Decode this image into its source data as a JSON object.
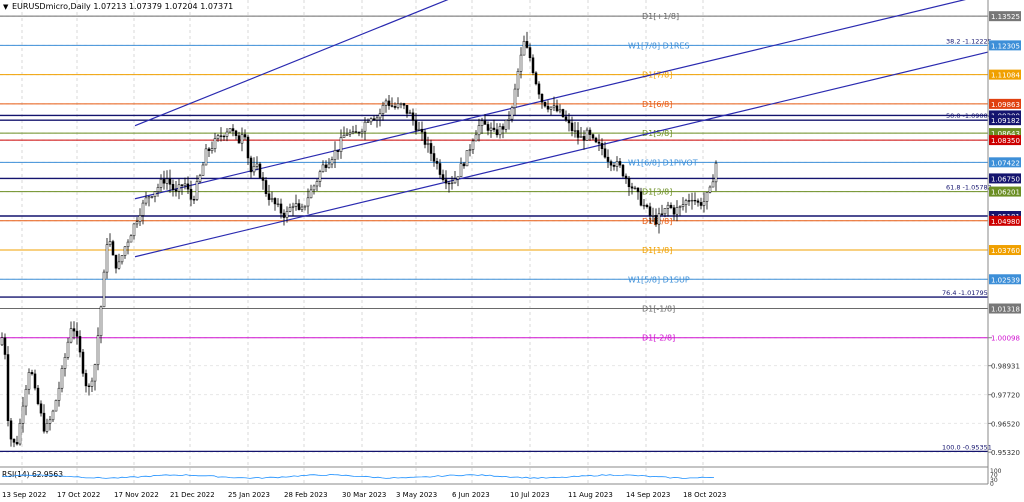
{
  "header": {
    "symbol_line": "EURUSDmicro,Daily  1.07213 1.07379 1.07204 1.07371",
    "triangle": "▼"
  },
  "chart_data": {
    "type": "candlestick",
    "ylim": [
      0.947,
      1.142
    ],
    "price_ticks": [
      "1.13525",
      "1.12305",
      "1.11084",
      "1.09863",
      "1.09380",
      "1.09182",
      "1.08643",
      "1.08350",
      "1.07422",
      "1.06750",
      "1.06201",
      "1.05181",
      "1.04980",
      "1.03760",
      "1.02539",
      "1.01318",
      "1.00098",
      "0.98931",
      "0.97720",
      "0.96520",
      "0.95320"
    ],
    "x_labels": [
      "13 Sep 2022",
      "17 Oct 2022",
      "17 Nov 2022",
      "21 Dec 2022",
      "25 Jan 2023",
      "28 Feb 2023",
      "30 Mar 2023",
      "3 May 2023",
      "6 Jun 2023",
      "10 Jul 2023",
      "11 Aug 2023",
      "14 Sep 2023",
      "18 Oct 2023"
    ],
    "key_levels": [
      {
        "price": 1.13525,
        "label": "D1[+1/8]",
        "color": "#6a6a6a",
        "tick_bg": "#777777"
      },
      {
        "price": 1.12305,
        "label": "W1[7/8] D1RES",
        "color": "#3d8fd8",
        "tick_bg": "#3d8fd8",
        "fib": "38.2 -1.12225"
      },
      {
        "price": 1.11084,
        "label": "D1[7/8]",
        "color": "#f0a000",
        "tick_bg": "#f0a000"
      },
      {
        "price": 1.09863,
        "label": "D1[6/8]",
        "color": "#e85a10",
        "tick_bg": "#e04010"
      },
      {
        "price": 1.0938,
        "label": "",
        "color": "#14146e",
        "tick_bg": "#14146e"
      },
      {
        "price": 1.09182,
        "label": "",
        "color": "#14146e",
        "tick_bg": "#14146e",
        "fib": "50.0 -1.09004"
      },
      {
        "price": 1.08643,
        "label": "D1[5/8]",
        "color": "#6b8e23",
        "tick_bg": "#6b8e23"
      },
      {
        "price": 1.0835,
        "label": "",
        "color": "#cc0000",
        "tick_bg": "#cc0000"
      },
      {
        "price": 1.07422,
        "label": "W1[6/8] D1PIVOT",
        "color": "#3d8fd8",
        "tick_bg": "#3d8fd8"
      },
      {
        "price": 1.0675,
        "label": "",
        "color": "#14146e",
        "tick_bg": "#14146e"
      },
      {
        "price": 1.06201,
        "label": "D1[3/8]",
        "color": "#6b8e23",
        "tick_bg": "#6b8e23",
        "fib": "61.8 -1.05782"
      },
      {
        "price": 1.05181,
        "label": "",
        "color": "#14146e",
        "tick_bg": "#14146e"
      },
      {
        "price": 1.0498,
        "label": "D1[2/8]",
        "color": "#e85a10",
        "tick_bg": "#cc0000"
      },
      {
        "price": 1.0376,
        "label": "D1[1/8]",
        "color": "#f0a000",
        "tick_bg": "#f0a000"
      },
      {
        "price": 1.02539,
        "label": "W1[5/8] D1SUP",
        "color": "#3d8fd8",
        "tick_bg": "#3d8fd8"
      },
      {
        "price": 1.01318,
        "label": "D1[-1/8]",
        "color": "#6a6a6a",
        "tick_bg": "#777777"
      },
      {
        "price": 1.00098,
        "label": "D1[-2/8]",
        "color": "#d010d0",
        "tick_bg": "#ffffff"
      }
    ],
    "fib_levels": [
      {
        "price": 1.01795,
        "label": "76.4 -1.01795"
      },
      {
        "price": 0.95351,
        "label": "100.0 -0.95351"
      }
    ],
    "channel_lines": [
      {
        "x1_label": "21 Dec 2022",
        "p1": 1.0895,
        "x2_label": "10 Jul 2023",
        "p2": 1.156
      },
      {
        "x1_label": "21 Dec 2022",
        "p1": 1.0348,
        "x2_label": "18 Oct 2023",
        "p2": 1.093
      }
    ],
    "price_path": [
      [
        0,
        0.998
      ],
      [
        4,
        1.004
      ],
      [
        8,
        0.968
      ],
      [
        12,
        0.956
      ],
      [
        18,
        0.958
      ],
      [
        22,
        0.972
      ],
      [
        30,
        0.99
      ],
      [
        35,
        0.978
      ],
      [
        45,
        0.962
      ],
      [
        52,
        0.968
      ],
      [
        60,
        0.982
      ],
      [
        66,
        0.995
      ],
      [
        72,
        1.008
      ],
      [
        78,
        0.998
      ],
      [
        88,
        0.978
      ],
      [
        95,
        0.99
      ],
      [
        103,
        1.022
      ],
      [
        108,
        1.046
      ],
      [
        112,
        1.035
      ],
      [
        118,
        1.03
      ],
      [
        124,
        1.038
      ],
      [
        130,
        1.044
      ],
      [
        140,
        1.054
      ],
      [
        148,
        1.06
      ],
      [
        158,
        1.064
      ],
      [
        166,
        1.068
      ],
      [
        176,
        1.061
      ],
      [
        184,
        1.066
      ],
      [
        192,
        1.058
      ],
      [
        200,
        1.068
      ],
      [
        206,
        1.078
      ],
      [
        214,
        1.082
      ],
      [
        222,
        1.086
      ],
      [
        230,
        1.089
      ],
      [
        238,
        1.082
      ],
      [
        244,
        1.09
      ],
      [
        250,
        1.07
      ],
      [
        258,
        1.072
      ],
      [
        266,
        1.062
      ],
      [
        272,
        1.058
      ],
      [
        280,
        1.054
      ],
      [
        286,
        1.052
      ],
      [
        294,
        1.058
      ],
      [
        300,
        1.052
      ],
      [
        308,
        1.06
      ],
      [
        316,
        1.066
      ],
      [
        322,
        1.072
      ],
      [
        330,
        1.076
      ],
      [
        338,
        1.08
      ],
      [
        346,
        1.087
      ],
      [
        354,
        1.085
      ],
      [
        362,
        1.089
      ],
      [
        370,
        1.094
      ],
      [
        378,
        1.093
      ],
      [
        386,
        1.1
      ],
      [
        394,
        1.097
      ],
      [
        402,
        1.098
      ],
      [
        410,
        1.094
      ],
      [
        418,
        1.088
      ],
      [
        426,
        1.082
      ],
      [
        434,
        1.076
      ],
      [
        442,
        1.069
      ],
      [
        450,
        1.066
      ],
      [
        456,
        1.068
      ],
      [
        462,
        1.073
      ],
      [
        468,
        1.078
      ],
      [
        474,
        1.086
      ],
      [
        480,
        1.09
      ],
      [
        488,
        1.089
      ],
      [
        494,
        1.086
      ],
      [
        500,
        1.088
      ],
      [
        506,
        1.09
      ],
      [
        512,
        1.096
      ],
      [
        518,
        1.112
      ],
      [
        524,
        1.124
      ],
      [
        530,
        1.118
      ],
      [
        536,
        1.108
      ],
      [
        542,
        1.1
      ],
      [
        548,
        1.098
      ],
      [
        556,
        1.096
      ],
      [
        562,
        1.094
      ],
      [
        568,
        1.09
      ],
      [
        574,
        1.087
      ],
      [
        580,
        1.084
      ],
      [
        588,
        1.086
      ],
      [
        594,
        1.082
      ],
      [
        602,
        1.08
      ],
      [
        608,
        1.076
      ],
      [
        614,
        1.074
      ],
      [
        620,
        1.072
      ],
      [
        626,
        1.068
      ],
      [
        632,
        1.064
      ],
      [
        638,
        1.06
      ],
      [
        644,
        1.056
      ],
      [
        650,
        1.052
      ],
      [
        656,
        1.05
      ],
      [
        662,
        1.052
      ],
      [
        668,
        1.056
      ],
      [
        674,
        1.054
      ],
      [
        680,
        1.055
      ],
      [
        686,
        1.058
      ],
      [
        692,
        1.06
      ],
      [
        698,
        1.057
      ],
      [
        704,
        1.058
      ],
      [
        710,
        1.062
      ],
      [
        716,
        1.074
      ]
    ],
    "rsi": {
      "label": "RSI(14) 62.9563",
      "ticks": [
        "100",
        "70",
        "30",
        "0"
      ],
      "value": 62.9563
    }
  }
}
